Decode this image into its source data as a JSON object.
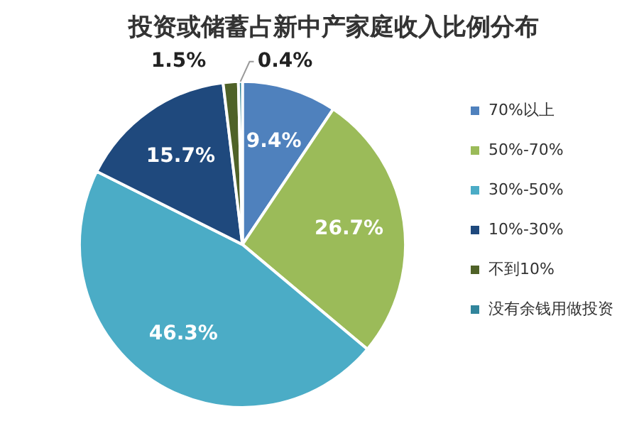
{
  "chart_data": {
    "type": "pie",
    "title": "投资或储蓄占新中产家庭收入比例分布",
    "categories": [
      "70%以上",
      "50%-70%",
      "30%-50%",
      "10%-30%",
      "不到10%",
      "没有余钱用做投资"
    ],
    "values": [
      9.4,
      26.7,
      46.3,
      15.7,
      1.5,
      0.4
    ],
    "colors": [
      "#4f81bd",
      "#9bbb59",
      "#4bacc6",
      "#1f497d",
      "#4f6228",
      "#31859c"
    ],
    "value_labels": [
      "9.4%",
      "26.7%",
      "46.3%",
      "15.7%",
      "1.5%",
      "0.4%"
    ],
    "legend": "right"
  }
}
